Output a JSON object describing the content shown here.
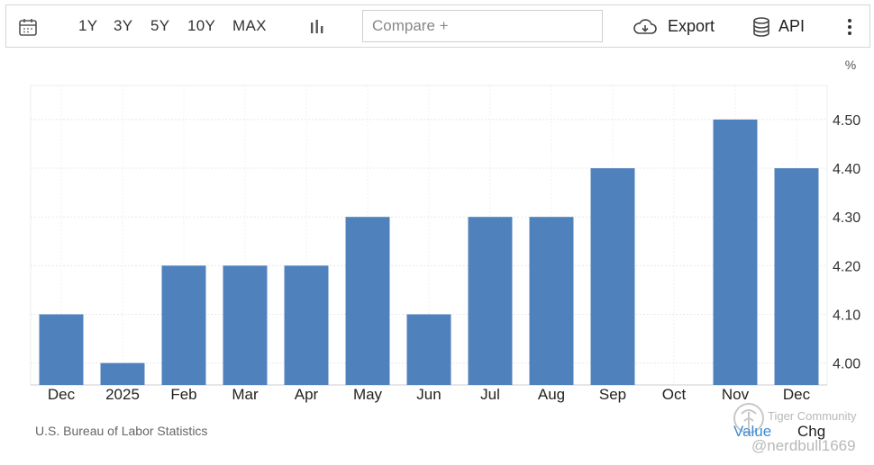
{
  "toolbar": {
    "ranges": [
      "1Y",
      "3Y",
      "5Y",
      "10Y",
      "MAX"
    ],
    "compare_placeholder": "Compare +",
    "export_label": "Export",
    "api_label": "API",
    "icons": [
      "calendar-icon",
      "bar-chart-icon",
      "cloud-download-icon",
      "database-icon",
      "more-vertical-icon"
    ]
  },
  "chart_data": {
    "type": "bar",
    "categories": [
      "Dec",
      "2025",
      "Feb",
      "Mar",
      "Apr",
      "May",
      "Jun",
      "Jul",
      "Aug",
      "Sep",
      "Oct",
      "Nov",
      "Dec"
    ],
    "values": [
      4.1,
      4.0,
      4.2,
      4.2,
      4.2,
      4.3,
      4.1,
      4.3,
      4.3,
      4.4,
      null,
      4.5,
      4.4
    ],
    "unit": "%",
    "yticks": [
      "4.00",
      "4.10",
      "4.20",
      "4.30",
      "4.40",
      "4.50"
    ],
    "ylim": [
      3.955,
      4.57
    ],
    "bar_color": "#4f81bd",
    "axis_side": "right",
    "grid": true
  },
  "footer": {
    "source": "U.S. Bureau of Labor Statistics",
    "tabs": [
      "Value",
      "Chg"
    ],
    "active_tab_color": "#3d8bd4"
  },
  "watermark": {
    "brand": "Tiger Community",
    "handle": "@nerdbull1669"
  }
}
